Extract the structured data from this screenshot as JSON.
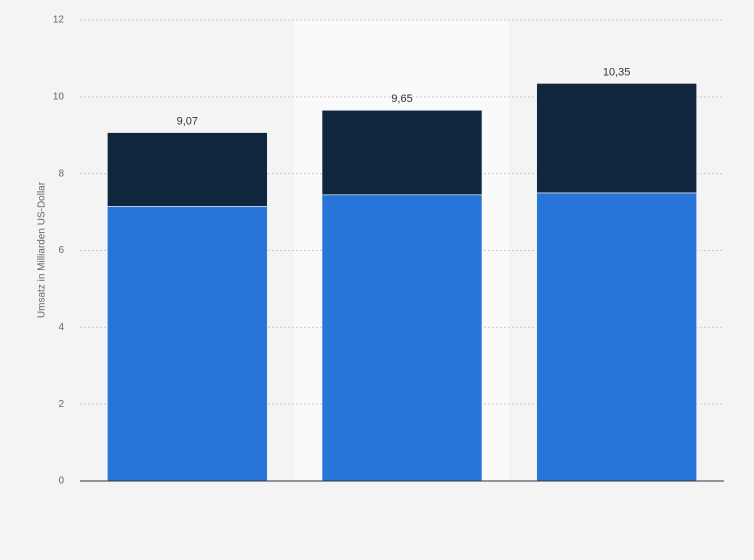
{
  "chart_data": {
    "type": "stacked-bar",
    "y_label": "Umsatz in Milliarden US-Dollar",
    "categories": [
      null,
      null,
      null
    ],
    "series": [
      {
        "color": "#2775d9",
        "values": [
          7.15,
          7.45,
          7.5
        ]
      },
      {
        "color": "#10263d",
        "values": [
          1.92,
          2.2,
          2.85
        ]
      }
    ],
    "totals": [
      9.07,
      9.65,
      10.35
    ],
    "total_labels": [
      "9,07",
      "9,65",
      "10,35"
    ],
    "ylim": [
      0,
      12
    ],
    "yticks": [
      0,
      2,
      4,
      6,
      8,
      10,
      12
    ],
    "grid": true
  }
}
